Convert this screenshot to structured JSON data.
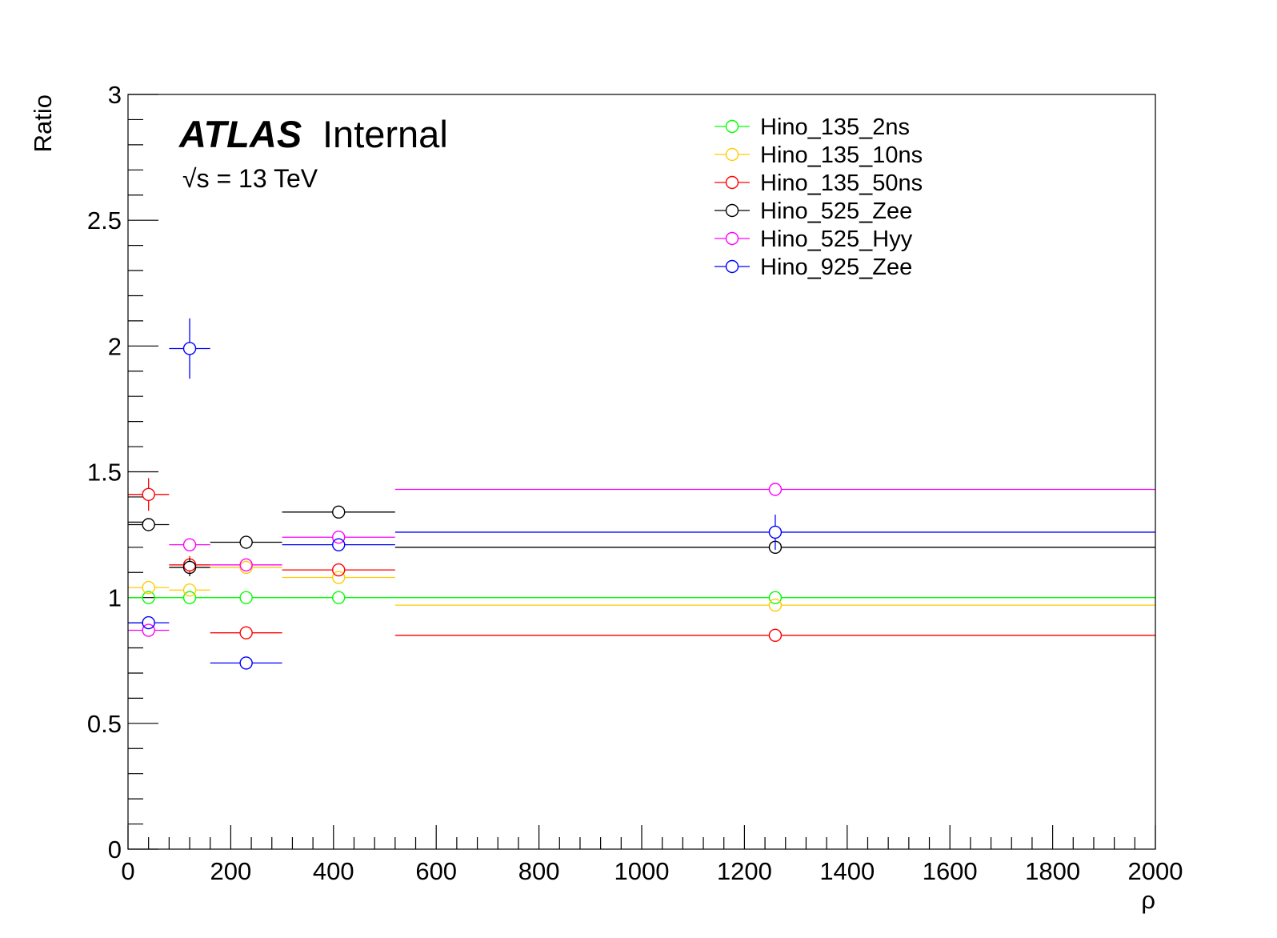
{
  "chart_data": {
    "type": "scatter",
    "xlabel": "ρ",
    "ylabel": "Ratio",
    "xlim": [
      0,
      2000
    ],
    "ylim": [
      0,
      3
    ],
    "x_ticks": [
      0,
      200,
      400,
      600,
      800,
      1000,
      1200,
      1400,
      1600,
      1800,
      2000
    ],
    "x_tick_labels": [
      "0",
      "200",
      "400",
      "600",
      "800",
      "1000",
      "1200",
      "1400",
      "1600",
      "1800",
      "2000"
    ],
    "y_ticks": [
      0,
      0.5,
      1,
      1.5,
      2,
      2.5,
      3
    ],
    "y_tick_labels": [
      "0",
      "0.5",
      "1",
      "1.5",
      "2",
      "2.5",
      "3"
    ],
    "grid": false,
    "legend_position": "top-right",
    "annotations": {
      "atlas": "ATLAS",
      "status": "Internal",
      "energy_sqrt": "√s",
      "energy_value": " = 13 TeV"
    },
    "bins": [
      {
        "low": 0,
        "high": 80,
        "center": 40
      },
      {
        "low": 80,
        "high": 160,
        "center": 120
      },
      {
        "low": 160,
        "high": 300,
        "center": 230
      },
      {
        "low": 300,
        "high": 520,
        "center": 410
      },
      {
        "low": 520,
        "high": 2000,
        "center": 1260
      }
    ],
    "series": [
      {
        "name": "Hino_135_2ns",
        "color": "#00ff00",
        "values": [
          1.0,
          1.0,
          1.0,
          1.0,
          1.0
        ],
        "errors": [
          0.0,
          0.0,
          0.0,
          0.0,
          0.0
        ]
      },
      {
        "name": "Hino_135_10ns",
        "color": "#ffcc00",
        "values": [
          1.04,
          1.03,
          1.12,
          1.08,
          0.97
        ],
        "errors": [
          0.0,
          0.0,
          0.0,
          0.0,
          0.0
        ]
      },
      {
        "name": "Hino_135_50ns",
        "color": "#ff0000",
        "values": [
          1.41,
          1.13,
          0.86,
          1.11,
          0.85
        ],
        "errors": [
          0.065,
          0.035,
          0.0,
          0.0,
          0.0
        ]
      },
      {
        "name": "Hino_525_Zee",
        "color": "#000000",
        "values": [
          1.29,
          1.12,
          1.22,
          1.34,
          1.2
        ],
        "errors": [
          0.0,
          0.035,
          0.0,
          0.0,
          0.025
        ]
      },
      {
        "name": "Hino_525_Hyy",
        "color": "#ff00ff",
        "values": [
          0.87,
          1.21,
          1.13,
          1.24,
          1.43
        ],
        "errors": [
          0.0,
          0.0,
          0.0,
          0.0,
          0.0
        ]
      },
      {
        "name": "Hino_925_Zee",
        "color": "#0000ff",
        "values": [
          0.9,
          1.99,
          0.74,
          1.21,
          1.26
        ],
        "errors": [
          0.0,
          0.12,
          0.0,
          0.0,
          0.07
        ]
      }
    ]
  }
}
